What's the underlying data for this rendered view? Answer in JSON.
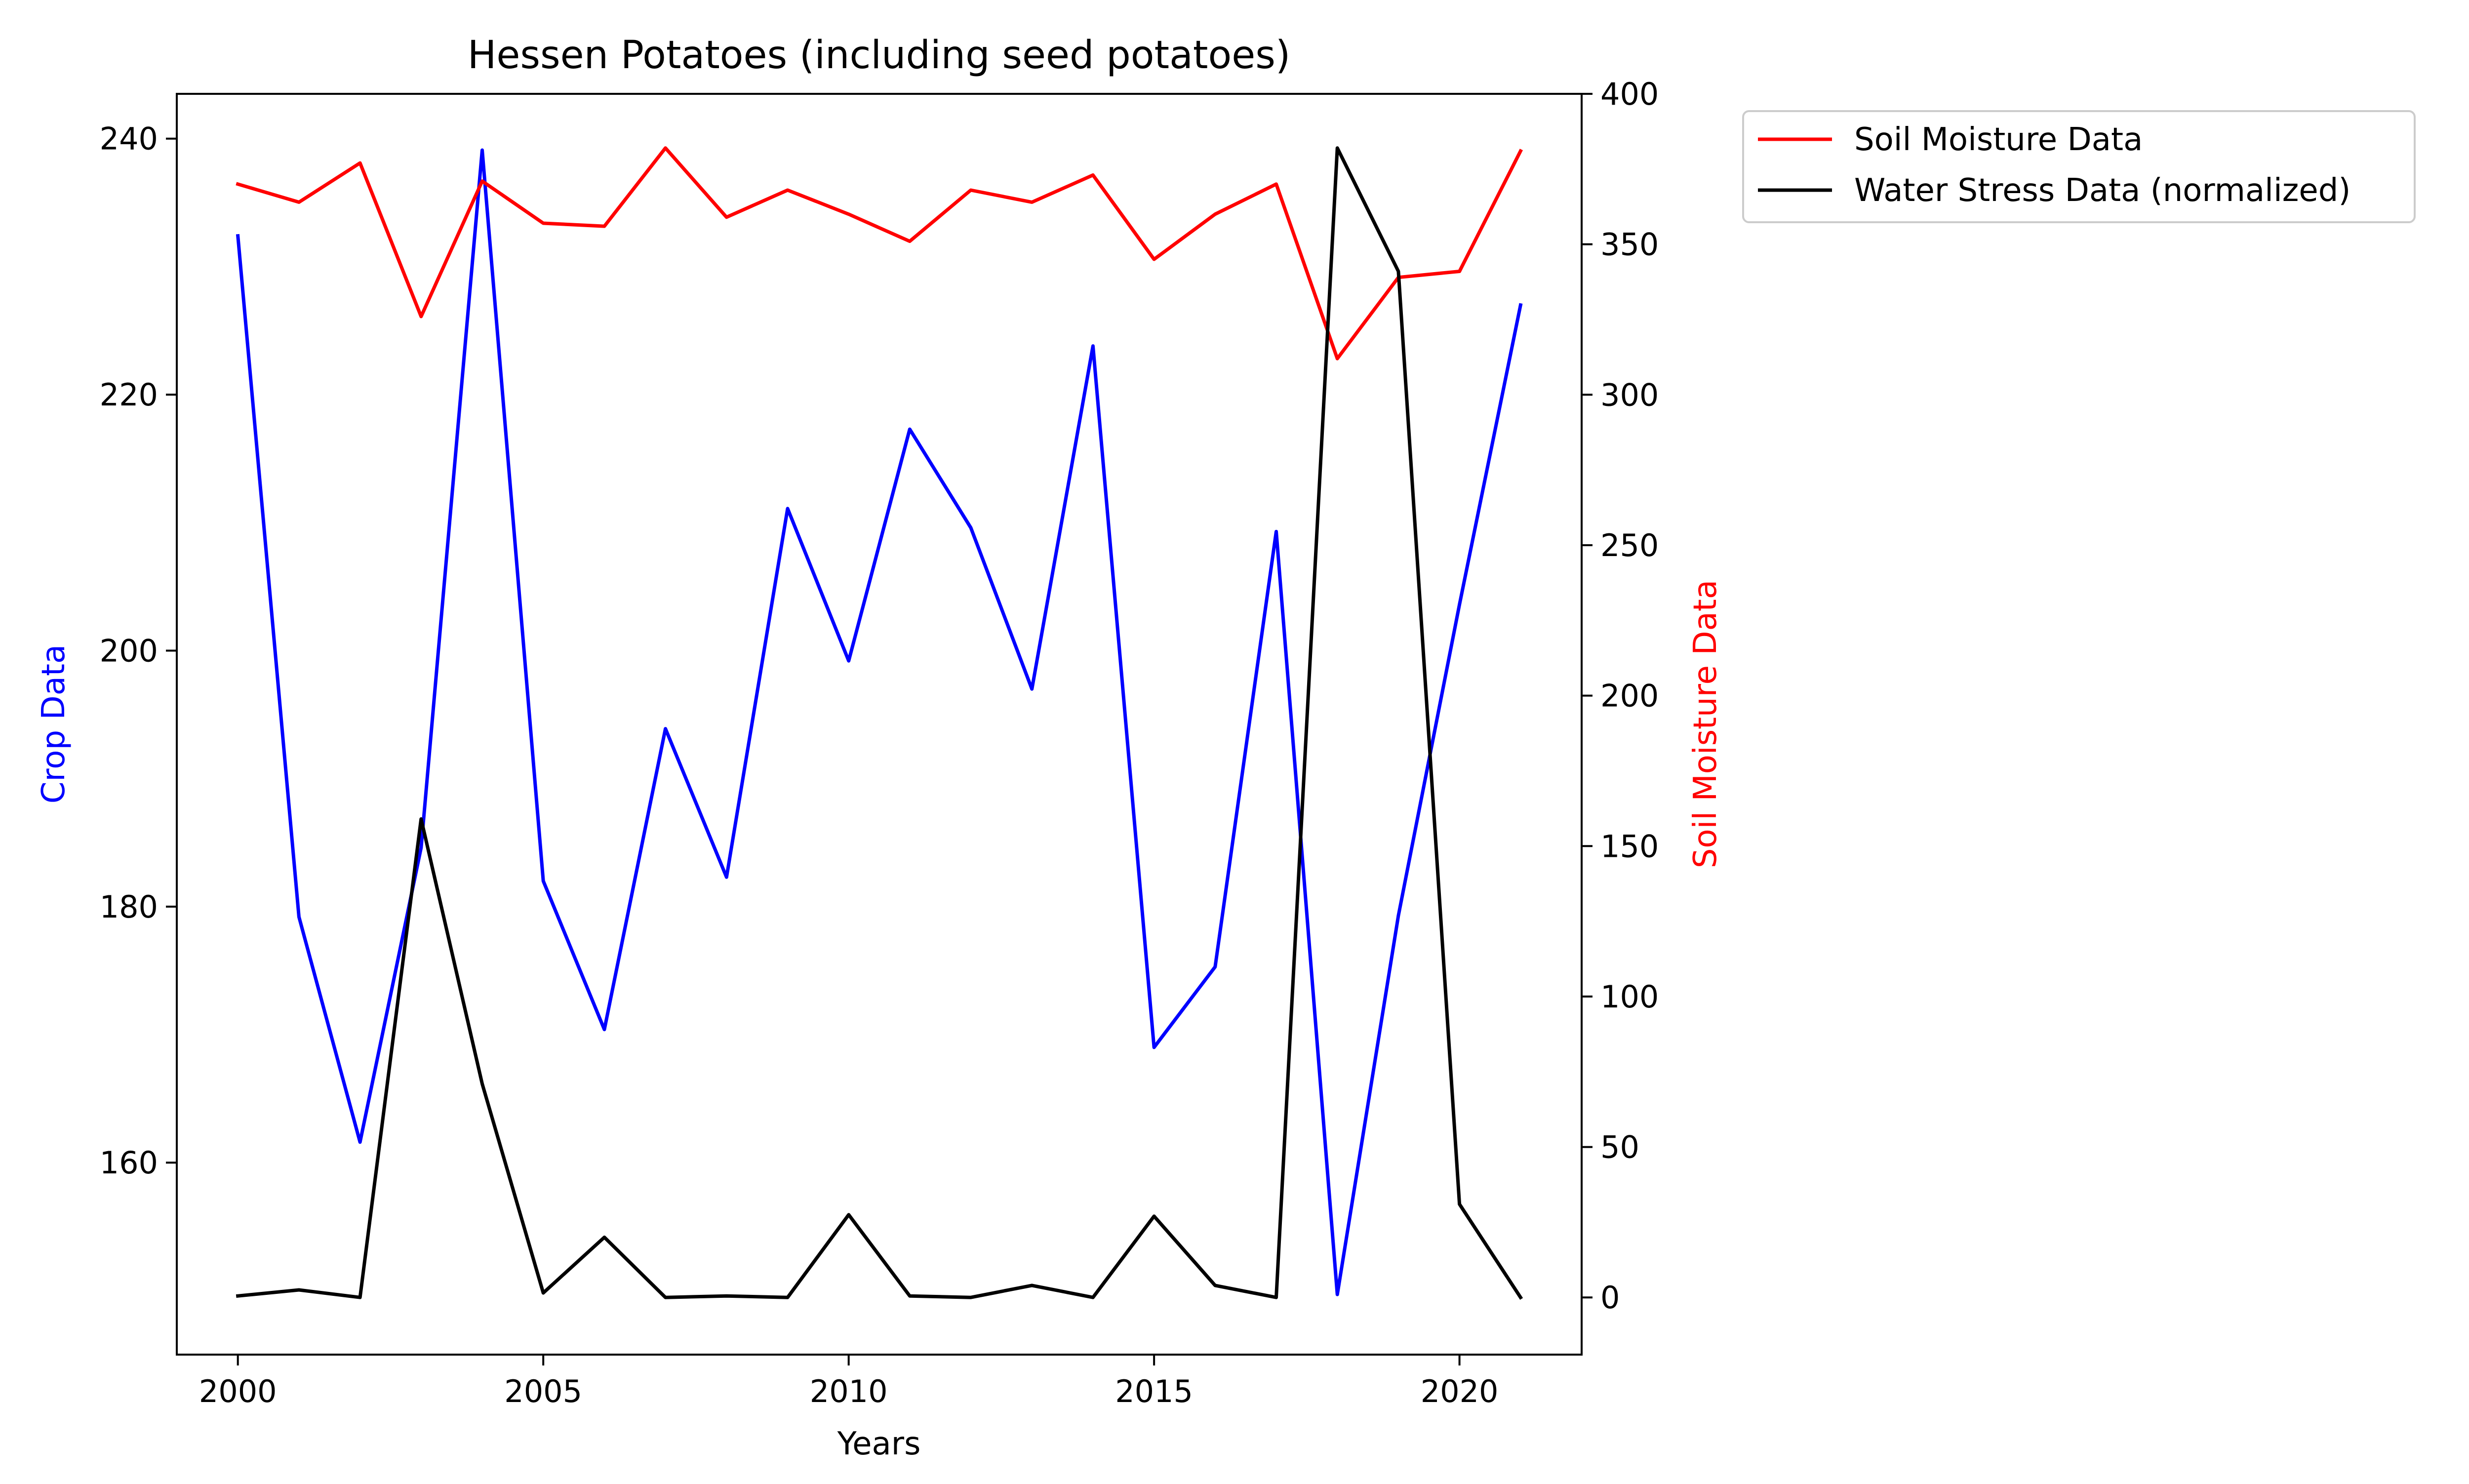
{
  "chart_data": {
    "type": "line",
    "title": "Hessen Potatoes (including seed potatoes)",
    "xlabel": "Years",
    "ylabel_left": "Crop Data",
    "ylabel_right": "Soil Moisture Data",
    "xlim": [
      1999,
      2022
    ],
    "ylim_left": [
      145,
      243.5
    ],
    "ylim_right": [
      -19,
      400
    ],
    "x_ticks": [
      2000,
      2005,
      2010,
      2015,
      2020
    ],
    "y_left_ticks": [
      160,
      180,
      200,
      220,
      240
    ],
    "y_right_ticks": [
      0,
      50,
      100,
      150,
      200,
      250,
      300,
      350,
      400
    ],
    "grid": false,
    "legend_position": "outside-upper-right",
    "x": [
      2000,
      2001,
      2002,
      2003,
      2004,
      2005,
      2006,
      2007,
      2008,
      2009,
      2010,
      2011,
      2012,
      2013,
      2014,
      2015,
      2016,
      2017,
      2018,
      2019,
      2020,
      2021
    ],
    "series": [
      {
        "name": "",
        "axis": "left",
        "color": "#0000ff",
        "values": [
          232.4,
          179.2,
          161.6,
          184.6,
          239.1,
          182.0,
          170.4,
          193.9,
          182.3,
          211.1,
          199.2,
          217.3,
          209.6,
          197.0,
          223.8,
          169.0,
          175.3,
          209.3,
          149.7,
          179.3,
          203.6,
          227.0
        ]
      },
      {
        "name": "Soil Moisture Data",
        "axis": "right",
        "color": "#ff0000",
        "values": [
          370,
          364,
          377,
          326,
          371,
          357,
          356,
          382,
          359,
          368,
          360,
          351,
          368,
          364,
          373,
          345,
          360,
          370,
          312,
          339,
          341,
          381
        ]
      },
      {
        "name": "Water Stress Data (normalized)",
        "axis": "right",
        "color": "#000000",
        "values": [
          0.5,
          2.5,
          0,
          159,
          71,
          1.5,
          20,
          0,
          0.5,
          0,
          27.5,
          0.5,
          0,
          4,
          0,
          27,
          4,
          0,
          382,
          341,
          31,
          0
        ]
      }
    ]
  }
}
